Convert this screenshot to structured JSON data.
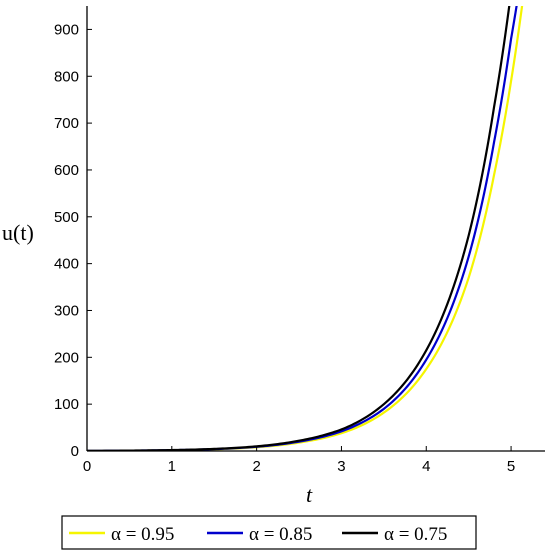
{
  "chart_data": {
    "type": "line",
    "xlabel": "t",
    "ylabel": "u(t)",
    "xlim": [
      0,
      5.4
    ],
    "ylim": [
      0,
      950
    ],
    "xticks": [
      "0",
      "1",
      "2",
      "3",
      "4",
      "5"
    ],
    "yticks": [
      "0",
      "100",
      "200",
      "300",
      "400",
      "500",
      "600",
      "700",
      "800",
      "900"
    ],
    "grid": false,
    "legend_position": "bottom",
    "series": [
      {
        "name": "α = 0.95",
        "color": "#f5f500",
        "points": [
          [
            0,
            0.3
          ],
          [
            0.5,
            0.7
          ],
          [
            1,
            1.6
          ],
          [
            1.5,
            3.6
          ],
          [
            2,
            8
          ],
          [
            2.5,
            18
          ],
          [
            3,
            38
          ],
          [
            3.5,
            82
          ],
          [
            4,
            175
          ],
          [
            4.5,
            370
          ],
          [
            4.8,
            590
          ],
          [
            5,
            790
          ],
          [
            5.2,
            1050
          ]
        ]
      },
      {
        "name": "α = 0.85",
        "color": "#0000cc",
        "points": [
          [
            0,
            0.3
          ],
          [
            0.5,
            0.8
          ],
          [
            1,
            1.8
          ],
          [
            1.5,
            4
          ],
          [
            2,
            9
          ],
          [
            2.5,
            20
          ],
          [
            3,
            42
          ],
          [
            3.5,
            90
          ],
          [
            4,
            195
          ],
          [
            4.5,
            415
          ],
          [
            4.8,
            660
          ],
          [
            5,
            880
          ],
          [
            5.15,
            1050
          ]
        ]
      },
      {
        "name": "α = 0.75",
        "color": "#000000",
        "points": [
          [
            0,
            0.3
          ],
          [
            0.5,
            0.9
          ],
          [
            1,
            2
          ],
          [
            1.5,
            4.5
          ],
          [
            2,
            10
          ],
          [
            2.5,
            22
          ],
          [
            3,
            46
          ],
          [
            3.5,
            100
          ],
          [
            4,
            215
          ],
          [
            4.5,
            460
          ],
          [
            4.8,
            735
          ],
          [
            5,
            980
          ],
          [
            5.1,
            1050
          ]
        ]
      }
    ]
  }
}
